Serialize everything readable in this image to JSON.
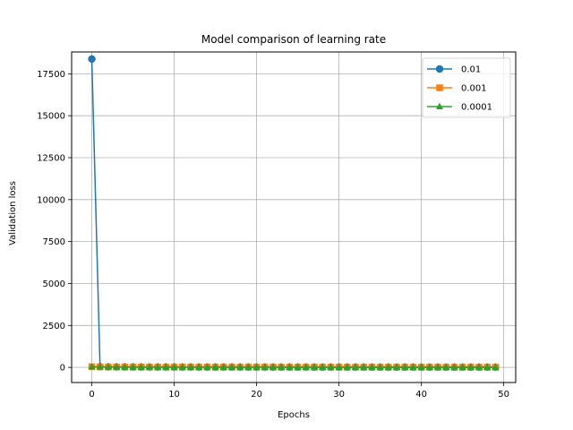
{
  "chart_data": {
    "type": "line",
    "title": "Model comparison of learning rate",
    "xlabel": "Epochs",
    "ylabel": "Validation loss",
    "xlim": [
      -2.45,
      51.45
    ],
    "ylim": [
      -900,
      18800
    ],
    "xticks": [
      0,
      10,
      20,
      30,
      40,
      50
    ],
    "yticks": [
      0,
      2500,
      5000,
      7500,
      10000,
      12500,
      15000,
      17500
    ],
    "grid": true,
    "legend": "top-right",
    "x": [
      0,
      1,
      2,
      3,
      4,
      5,
      6,
      7,
      8,
      9,
      10,
      11,
      12,
      13,
      14,
      15,
      16,
      17,
      18,
      19,
      20,
      21,
      22,
      23,
      24,
      25,
      26,
      27,
      28,
      29,
      30,
      31,
      32,
      33,
      34,
      35,
      36,
      37,
      38,
      39,
      40,
      41,
      42,
      43,
      44,
      45,
      46,
      47,
      48,
      49
    ],
    "series": [
      {
        "name": "0.01",
        "color": "#1f77b4",
        "marker": "circle",
        "values": [
          18380,
          45,
          30,
          28,
          26,
          25,
          24,
          24,
          23,
          23,
          22,
          22,
          22,
          21,
          21,
          21,
          21,
          20,
          20,
          20,
          20,
          20,
          19,
          19,
          19,
          19,
          19,
          19,
          18,
          18,
          18,
          18,
          18,
          18,
          18,
          17,
          17,
          17,
          17,
          17,
          17,
          17,
          17,
          16,
          16,
          16,
          16,
          16,
          16,
          16
        ]
      },
      {
        "name": "0.001",
        "color": "#ff7f0e",
        "marker": "square",
        "values": [
          40,
          30,
          25,
          22,
          20,
          19,
          18,
          17,
          16,
          16,
          15,
          15,
          14,
          14,
          14,
          13,
          13,
          13,
          13,
          12,
          12,
          12,
          12,
          12,
          11,
          11,
          11,
          11,
          11,
          11,
          10,
          10,
          10,
          10,
          10,
          10,
          10,
          9,
          9,
          9,
          9,
          9,
          9,
          9,
          9,
          9,
          8,
          8,
          8,
          8
        ]
      },
      {
        "name": "0.0001",
        "color": "#2ca02c",
        "marker": "triangle",
        "values": [
          35,
          28,
          24,
          21,
          19,
          18,
          17,
          16,
          15,
          15,
          14,
          14,
          13,
          13,
          13,
          12,
          12,
          12,
          12,
          11,
          11,
          11,
          11,
          11,
          10,
          10,
          10,
          10,
          10,
          10,
          9,
          9,
          9,
          9,
          9,
          9,
          9,
          8,
          8,
          8,
          8,
          8,
          8,
          8,
          8,
          8,
          7,
          7,
          7,
          7
        ]
      }
    ]
  }
}
